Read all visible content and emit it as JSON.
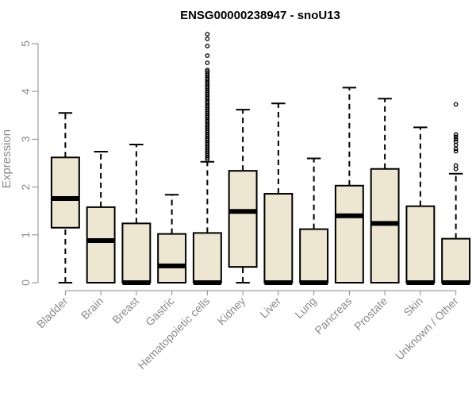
{
  "chart_data": {
    "type": "boxplot",
    "title": "ENSG00000238947 - snoU13",
    "xlabel": "",
    "ylabel": "Expression",
    "ylim": [
      0,
      5.25
    ],
    "yticks": [
      0,
      1,
      2,
      3,
      4,
      5
    ],
    "grid": false,
    "colors": {
      "box_fill": "#ede6d0",
      "stroke": "#000000",
      "axis_text": "#8a8a8a",
      "title": "#000000"
    },
    "categories": [
      "Bladder",
      "Brain",
      "Breast",
      "Gastric",
      "Hematopoietic cells",
      "Kidney",
      "Liver",
      "Lung",
      "Pancreas",
      "Prostate",
      "Skin",
      "Unknown / Other"
    ],
    "boxes": [
      {
        "q1": 1.15,
        "median": 1.76,
        "q3": 2.62,
        "whisker_low": 0.0,
        "whisker_high": 3.55,
        "outliers": []
      },
      {
        "q1": 0.0,
        "median": 0.88,
        "q3": 1.58,
        "whisker_low": 0.0,
        "whisker_high": 2.74,
        "outliers": []
      },
      {
        "q1": 0.0,
        "median": 0.0,
        "q3": 1.24,
        "whisker_low": 0.0,
        "whisker_high": 2.89,
        "outliers": []
      },
      {
        "q1": 0.0,
        "median": 0.35,
        "q3": 1.02,
        "whisker_low": 0.0,
        "whisker_high": 1.84,
        "outliers": []
      },
      {
        "q1": 0.0,
        "median": 0.0,
        "q3": 1.04,
        "whisker_low": 0.0,
        "whisker_high": 2.53,
        "outliers": [
          5.2,
          5.1,
          4.95,
          4.75,
          4.6,
          4.45,
          4.42,
          4.38,
          4.34,
          4.3,
          4.26,
          4.22,
          4.18,
          4.14,
          4.1,
          4.06,
          4.02,
          3.98,
          3.94,
          3.9,
          3.86,
          3.82,
          3.78,
          3.74,
          3.7,
          3.66,
          3.62,
          3.58,
          3.54,
          3.5,
          3.46,
          3.42,
          3.38,
          3.34,
          3.3,
          3.26,
          3.22,
          3.18,
          3.14,
          3.1,
          3.06,
          3.02,
          2.98,
          2.94,
          2.9,
          2.86,
          2.82,
          2.78,
          2.74,
          2.7,
          2.66,
          2.62,
          2.58
        ]
      },
      {
        "q1": 0.33,
        "median": 1.49,
        "q3": 2.34,
        "whisker_low": 0.0,
        "whisker_high": 3.62,
        "outliers": []
      },
      {
        "q1": 0.0,
        "median": 0.0,
        "q3": 1.86,
        "whisker_low": 0.0,
        "whisker_high": 3.75,
        "outliers": []
      },
      {
        "q1": 0.0,
        "median": 0.0,
        "q3": 1.12,
        "whisker_low": 0.0,
        "whisker_high": 2.6,
        "outliers": []
      },
      {
        "q1": 0.0,
        "median": 1.4,
        "q3": 2.03,
        "whisker_low": 0.0,
        "whisker_high": 4.08,
        "outliers": []
      },
      {
        "q1": 0.0,
        "median": 1.24,
        "q3": 2.38,
        "whisker_low": 0.0,
        "whisker_high": 3.85,
        "outliers": []
      },
      {
        "q1": 0.0,
        "median": 0.0,
        "q3": 1.6,
        "whisker_low": 0.0,
        "whisker_high": 3.25,
        "outliers": []
      },
      {
        "q1": 0.0,
        "median": 0.0,
        "q3": 0.92,
        "whisker_low": 0.0,
        "whisker_high": 2.28,
        "outliers": [
          3.73,
          3.1,
          3.05,
          3.0,
          2.95,
          2.88,
          2.8,
          2.75,
          2.45,
          2.38
        ]
      }
    ]
  }
}
